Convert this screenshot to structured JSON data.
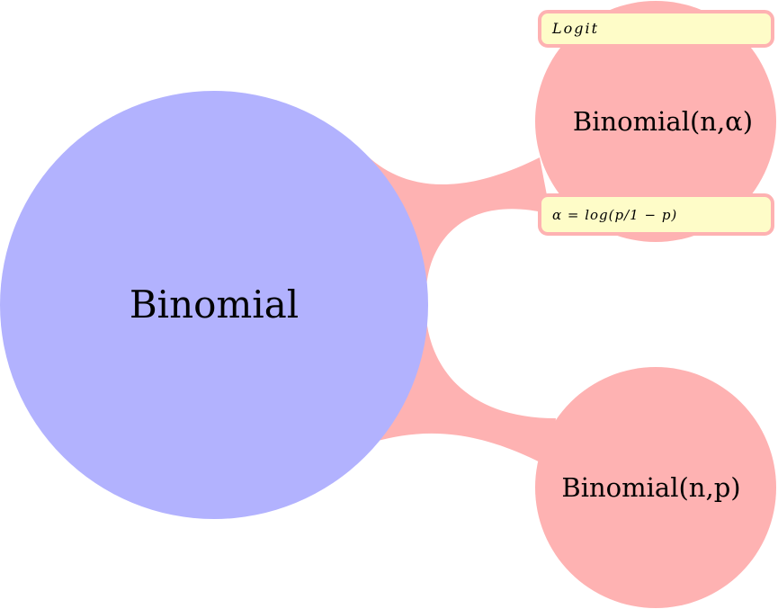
{
  "diagram": {
    "colors": {
      "root_fill": "#b2b2fe",
      "child_fill": "#feb2b2",
      "connector_fill": "#feb2b2",
      "annotation_fill": "#fefcc8",
      "annotation_border": "#feb2b2"
    },
    "root": {
      "label": "Binomial"
    },
    "children": [
      {
        "label": "Binomial(n,α)",
        "annotations": {
          "top": "Logit",
          "bottom": "α = log(p/1 − p)"
        }
      },
      {
        "label": "Binomial(n,p)"
      }
    ]
  }
}
